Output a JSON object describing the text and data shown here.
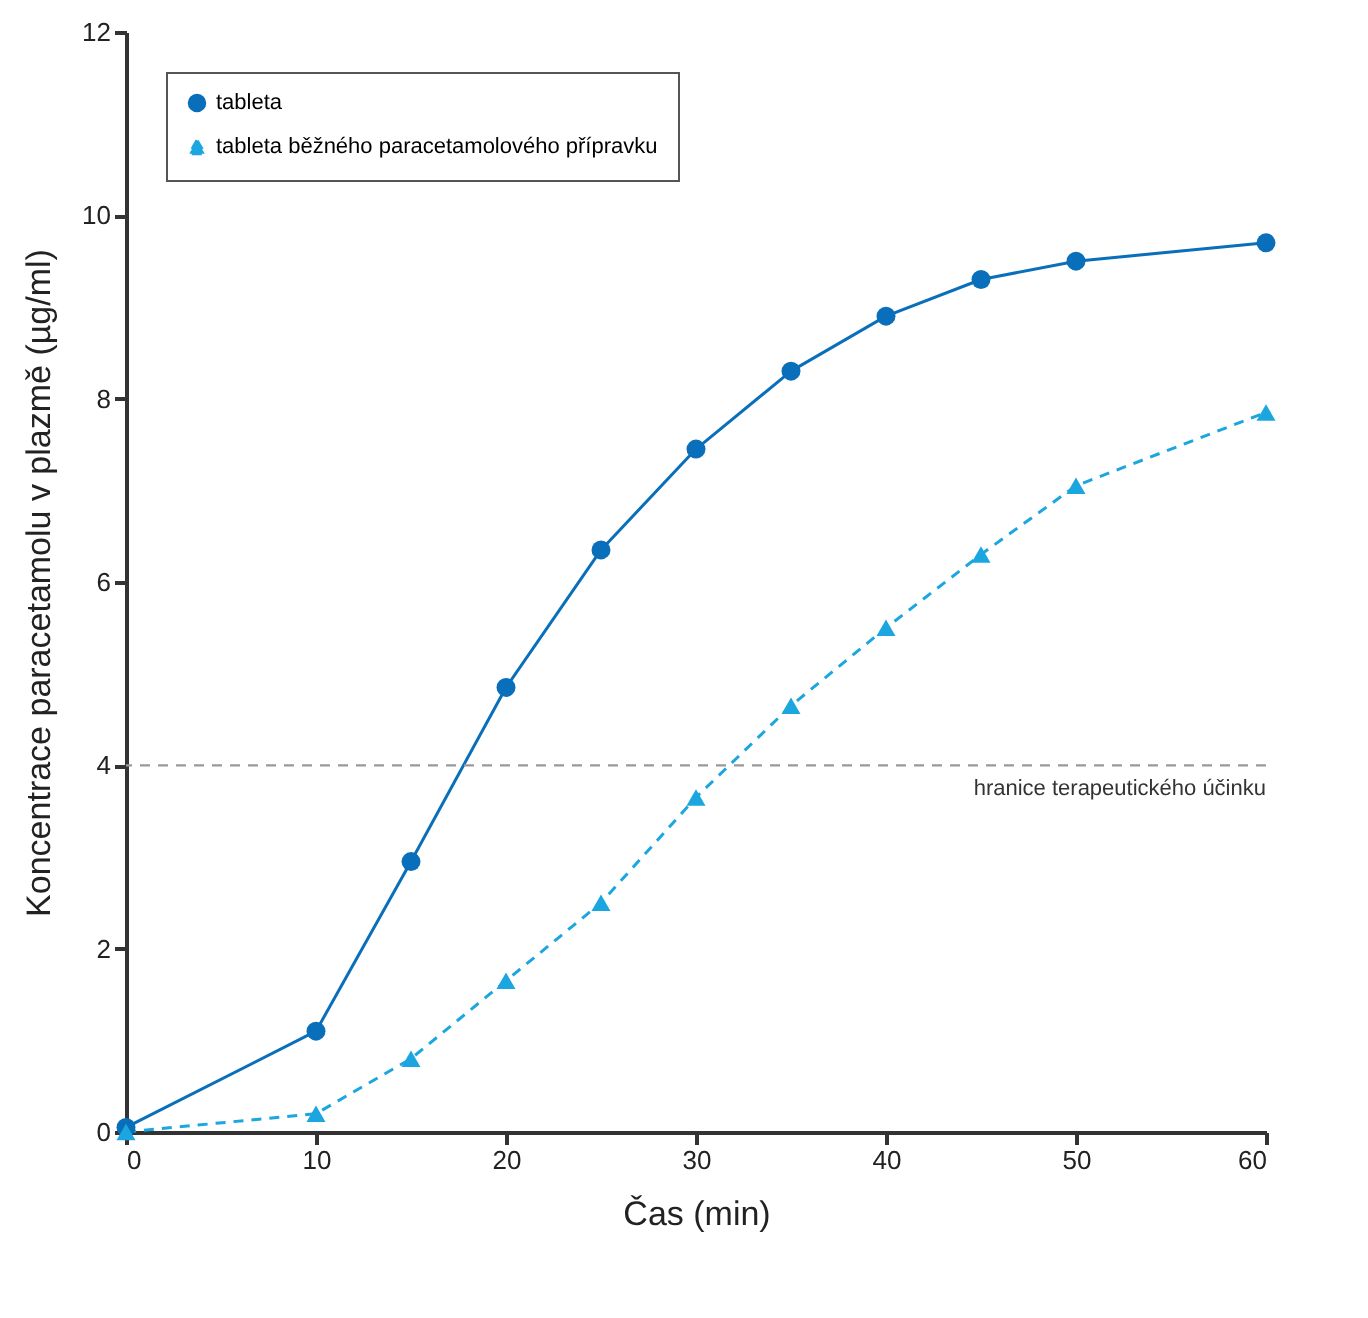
{
  "chart_data": {
    "type": "line",
    "xlabel": "Čas (min)",
    "ylabel": "Koncentrace paracetamolu v plazmě (µg/ml)",
    "x": [
      0,
      10,
      15,
      20,
      25,
      30,
      35,
      40,
      45,
      50,
      60
    ],
    "series": [
      {
        "name": "tableta",
        "color": "#0a6fba",
        "marker": "circle",
        "line_style": "solid",
        "values": [
          0.05,
          1.1,
          2.95,
          4.85,
          6.35,
          7.45,
          8.3,
          8.9,
          9.3,
          9.5,
          9.7
        ]
      },
      {
        "name": "tableta běžného paracetamolového přípravku",
        "color": "#1ba6e0",
        "marker": "triangle",
        "line_style": "dashed",
        "values": [
          0.0,
          0.2,
          0.8,
          1.65,
          2.5,
          3.65,
          4.65,
          5.5,
          6.3,
          7.05,
          7.85
        ]
      }
    ],
    "xlim": [
      0,
      60
    ],
    "xticks": [
      0,
      10,
      20,
      30,
      40,
      50,
      60
    ],
    "ylim": [
      0,
      12
    ],
    "yticks": [
      0,
      2,
      4,
      6,
      8,
      10,
      12
    ],
    "ref_lines": [
      {
        "axis": "y",
        "value": 4,
        "label": "hranice terapeutického účinku",
        "color": "#999999",
        "line_style": "dashed"
      }
    ],
    "grid": false,
    "legend": "top left"
  }
}
